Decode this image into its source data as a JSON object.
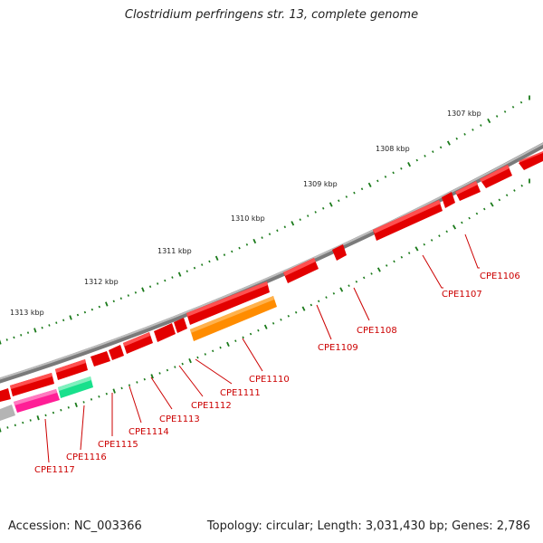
{
  "title": "Clostridium perfringens str. 13, complete genome",
  "footer": {
    "accession": "Accession: NC_003366",
    "summary": "Topology: circular; Length: 3,031,430 bp; Genes: 2,786"
  },
  "colors": {
    "backbone": "#8a8a8a",
    "gene": "#e30000",
    "gene_top": "#ff5050",
    "gene_dark": "#a00000",
    "tick": "#1a7a1a",
    "label": "#cc0000",
    "orange": "#ff8c00",
    "magenta": "#ff1e96",
    "teal": "#19e08c",
    "grey": "#b4b4b4"
  },
  "ticks": [
    {
      "label": "1307 kbp"
    },
    {
      "label": "1308 kbp"
    },
    {
      "label": "1309 kbp"
    },
    {
      "label": "1310 kbp"
    },
    {
      "label": "1311 kbp"
    },
    {
      "label": "1312 kbp"
    },
    {
      "label": "1313 kbp"
    }
  ],
  "genes": [
    {
      "name": "CPE1106"
    },
    {
      "name": "CPE1107"
    },
    {
      "name": "CPE1108"
    },
    {
      "name": "CPE1109"
    },
    {
      "name": "CPE1110"
    },
    {
      "name": "CPE1111"
    },
    {
      "name": "CPE1112"
    },
    {
      "name": "CPE1113"
    },
    {
      "name": "CPE1114"
    },
    {
      "name": "CPE1115"
    },
    {
      "name": "CPE1116"
    },
    {
      "name": "CPE1117"
    }
  ]
}
